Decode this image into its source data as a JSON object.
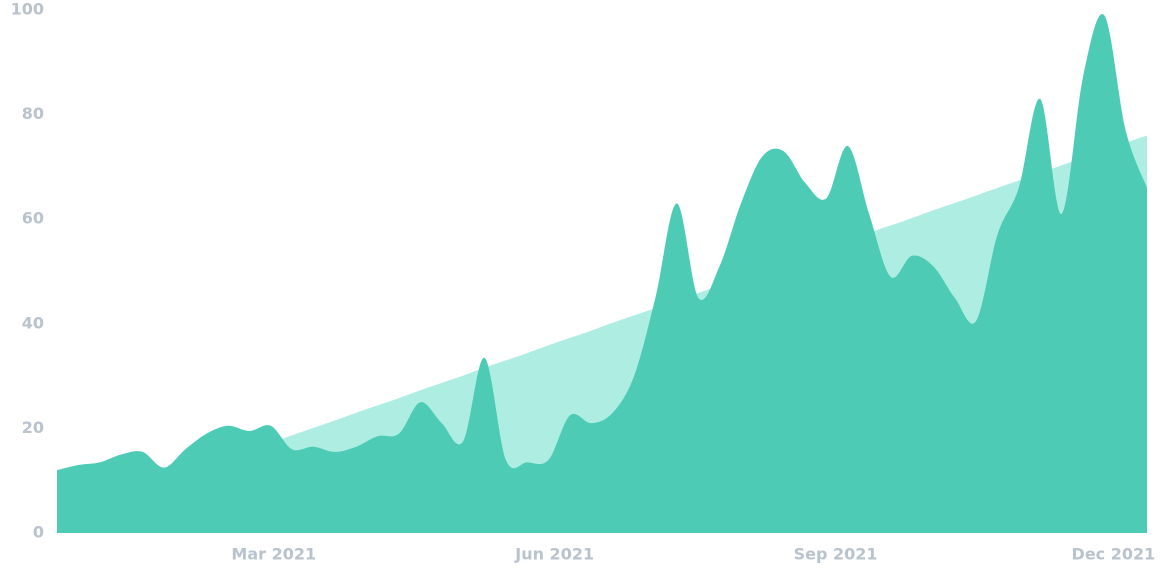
{
  "chart_data": {
    "type": "area",
    "x": [
      "2020-12-20",
      "2020-12-27",
      "2021-01-03",
      "2021-01-10",
      "2021-01-17",
      "2021-01-24",
      "2021-01-31",
      "2021-02-07",
      "2021-02-14",
      "2021-02-21",
      "2021-02-28",
      "2021-03-07",
      "2021-03-14",
      "2021-03-21",
      "2021-03-28",
      "2021-04-04",
      "2021-04-11",
      "2021-04-18",
      "2021-04-25",
      "2021-05-02",
      "2021-05-09",
      "2021-05-16",
      "2021-05-23",
      "2021-05-30",
      "2021-06-06",
      "2021-06-13",
      "2021-06-20",
      "2021-06-27",
      "2021-07-04",
      "2021-07-11",
      "2021-07-18",
      "2021-07-25",
      "2021-08-01",
      "2021-08-08",
      "2021-08-15",
      "2021-08-22",
      "2021-08-29",
      "2021-09-05",
      "2021-09-12",
      "2021-09-19",
      "2021-09-26",
      "2021-10-03",
      "2021-10-10",
      "2021-10-17",
      "2021-10-24",
      "2021-10-31",
      "2021-11-07",
      "2021-11-14",
      "2021-11-21",
      "2021-11-28",
      "2021-12-05",
      "2021-12-12"
    ],
    "series": [
      {
        "color": "#aeede2",
        "values": [
          2.9,
          4.3,
          5.8,
          7.2,
          8.6,
          10.1,
          11.5,
          12.9,
          14.4,
          15.8,
          17.2,
          18.7,
          20.1,
          21.5,
          23,
          24.4,
          25.8,
          27.3,
          28.7,
          30.1,
          31.6,
          33,
          34.4,
          35.9,
          37.3,
          38.7,
          40.2,
          41.6,
          43,
          44.5,
          45.9,
          47.3,
          48.8,
          50.2,
          51.6,
          53.1,
          54.5,
          55.9,
          57.4,
          58.8,
          60.2,
          61.7,
          63.1,
          64.5,
          66,
          67.4,
          68.8,
          70.3,
          71.7,
          73.1,
          74.6,
          76
        ]
      },
      {
        "color": "#4ecbb5",
        "values": [
          12,
          13,
          13.5,
          15,
          15.5,
          12.5,
          16,
          19,
          20.5,
          19.5,
          20.5,
          16,
          16.5,
          15.5,
          16.5,
          18.5,
          19,
          25,
          21,
          17.5,
          33.5,
          14,
          13.5,
          14,
          22.5,
          21,
          23,
          30,
          45,
          63,
          45,
          51,
          63,
          72,
          73,
          67,
          64,
          74,
          61,
          49,
          53,
          51,
          45,
          40.5,
          57,
          66,
          83,
          61,
          87,
          99,
          77,
          66
        ]
      }
    ],
    "xlim": [
      "2020-12-20",
      "2021-12-12"
    ],
    "xticks": [
      {
        "value": "2021-03-01",
        "label": "Mar 2021"
      },
      {
        "value": "2021-06-01",
        "label": "Jun 2021"
      },
      {
        "value": "2021-09-01",
        "label": "Sep 2021"
      },
      {
        "value": "2021-12-01",
        "label": "Dec 2021"
      }
    ],
    "ylim": [
      0,
      100
    ],
    "yticks": [
      0,
      20,
      40,
      60,
      80,
      100
    ],
    "grid": false
  }
}
